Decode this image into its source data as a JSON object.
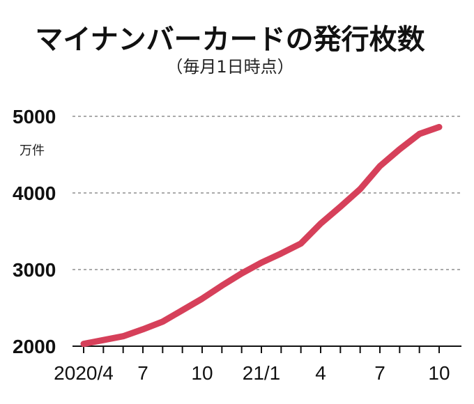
{
  "chart_data": {
    "type": "line",
    "title": "マイナンバーカードの発行枚数",
    "subtitle": "（毎月1日時点）",
    "ylabel": "万件",
    "xlabel": "",
    "ylim": [
      2000,
      5000
    ],
    "yticks": [
      2000,
      3000,
      4000,
      5000
    ],
    "grid": true,
    "line_color": "#d6405a",
    "x": [
      "2020/4",
      "2020/5",
      "2020/6",
      "2020/7",
      "2020/8",
      "2020/9",
      "2020/10",
      "2020/11",
      "2020/12",
      "21/1",
      "21/2",
      "21/3",
      "21/4",
      "21/5",
      "21/6",
      "21/7",
      "21/8",
      "21/9",
      "21/10"
    ],
    "x_tick_labels": [
      "2020/4",
      "",
      "",
      "7",
      "",
      "",
      "10",
      "",
      "",
      "21/1",
      "",
      "",
      "4",
      "",
      "",
      "7",
      "",
      "",
      "10"
    ],
    "series": [
      {
        "values": [
          2030,
          2080,
          2130,
          2220,
          2320,
          2470,
          2620,
          2790,
          2950,
          3090,
          3210,
          3340,
          3600,
          3820,
          4050,
          4350,
          4570,
          4770,
          4860
        ]
      }
    ]
  }
}
